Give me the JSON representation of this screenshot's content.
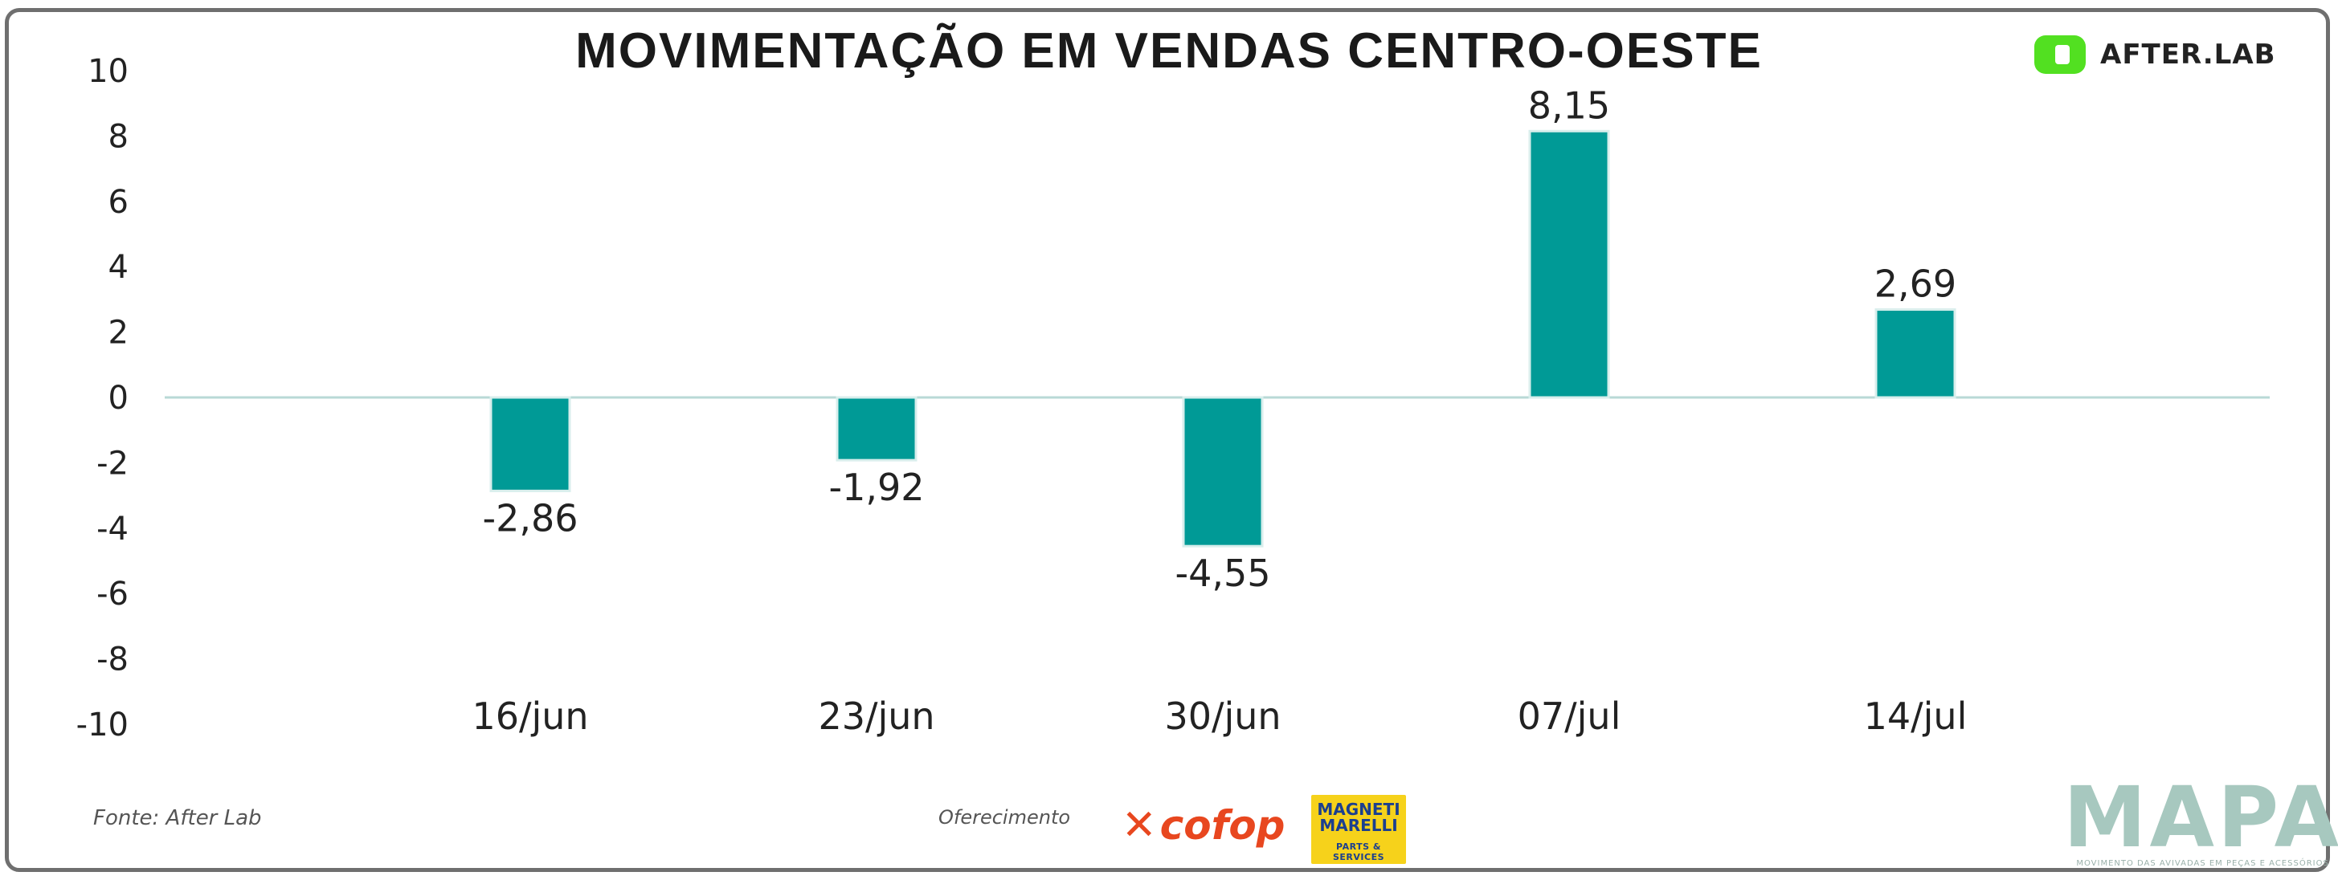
{
  "header": {
    "title": "MOVIMENTAÇÃO EM VENDAS CENTRO-OESTE",
    "brand_name": "AFTER.LAB",
    "brand_color": "#52e021"
  },
  "chart_data": {
    "type": "bar",
    "title": "MOVIMENTAÇÃO EM VENDAS CENTRO-OESTE",
    "categories": [
      "16/jun",
      "23/jun",
      "30/jun",
      "07/jul",
      "14/jul"
    ],
    "values": [
      -2.86,
      -1.92,
      -4.55,
      8.15,
      2.69
    ],
    "value_labels": [
      "-2,86",
      "-1,92",
      "-4,55",
      "8,15",
      "2,69"
    ],
    "ylim": [
      -10,
      10
    ],
    "yticks": [
      10,
      8,
      6,
      4,
      2,
      0,
      -2,
      -4,
      -6,
      -8,
      -10
    ],
    "xlabel": "",
    "ylabel": "",
    "grid": false,
    "bar_color": "#009a96",
    "zero_line_color": "#b9d9d6"
  },
  "footer": {
    "source": "Fonte: After Lab",
    "sponsorship": "Oferecimento",
    "sponsor_1": "cofop",
    "sponsor_2_line1": "MAGNETI",
    "sponsor_2_line2": "MARELLI",
    "sponsor_2_sub": "PARTS & SERVICES",
    "mapa": "MAPA",
    "mapa_tagline": "MOVIMENTO DAS AVIVADAS EM PEÇAS E ACESSÓRIOS"
  }
}
